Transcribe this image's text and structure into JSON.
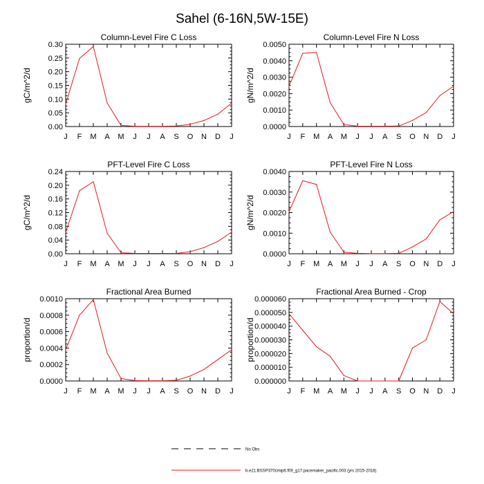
{
  "figure": {
    "title": "Sahel (6-16N,5W-15E)"
  },
  "chart_data": [
    {
      "type": "line",
      "title": "Column-Level Fire C Loss",
      "ylabel": "gC/m^2/d",
      "categories": [
        "J",
        "F",
        "M",
        "A",
        "M",
        "J",
        "J",
        "A",
        "S",
        "O",
        "N",
        "D",
        "J"
      ],
      "ylim": [
        0,
        0.3
      ],
      "yticks": [
        "0.00",
        "0.05",
        "0.10",
        "0.15",
        "0.20",
        "0.25",
        "0.30"
      ],
      "series": [
        {
          "color": "#e8141b",
          "values": [
            0.082,
            0.248,
            0.292,
            0.086,
            0.004,
            0.001,
            0.001,
            0.001,
            0.002,
            0.008,
            0.022,
            0.045,
            0.085
          ]
        }
      ]
    },
    {
      "type": "line",
      "title": "Column-Level Fire N Loss",
      "ylabel": "gN/m^2/d",
      "categories": [
        "J",
        "F",
        "M",
        "A",
        "M",
        "J",
        "J",
        "A",
        "S",
        "O",
        "N",
        "D",
        "J"
      ],
      "ylim": [
        0,
        0.005
      ],
      "yticks": [
        "0.0000",
        "0.0010",
        "0.0020",
        "0.0030",
        "0.0040",
        "0.0050"
      ],
      "series": [
        {
          "color": "#e8141b",
          "values": [
            0.00245,
            0.00445,
            0.0045,
            0.00145,
            0.00012,
            2e-05,
            2e-05,
            2e-05,
            3e-05,
            0.00037,
            0.00085,
            0.00188,
            0.00245
          ]
        }
      ]
    },
    {
      "type": "line",
      "title": "PFT-Level Fire C Loss",
      "ylabel": "gC/m^2/d",
      "categories": [
        "J",
        "F",
        "M",
        "A",
        "M",
        "J",
        "J",
        "A",
        "S",
        "O",
        "N",
        "D",
        "J"
      ],
      "ylim": [
        0,
        0.24
      ],
      "yticks": [
        "0.00",
        "0.04",
        "0.08",
        "0.12",
        "0.16",
        "0.20",
        "0.24"
      ],
      "series": [
        {
          "color": "#e8141b",
          "values": [
            0.062,
            0.184,
            0.21,
            0.06,
            0.003,
            0.001,
            0.001,
            0.001,
            0.001,
            0.006,
            0.018,
            0.036,
            0.063
          ]
        }
      ]
    },
    {
      "type": "line",
      "title": "PFT-Level Fire N Loss",
      "ylabel": "gN/m^2/d",
      "categories": [
        "J",
        "F",
        "M",
        "A",
        "M",
        "J",
        "J",
        "A",
        "S",
        "O",
        "N",
        "D",
        "J"
      ],
      "ylim": [
        0,
        0.004
      ],
      "yticks": [
        "0.0000",
        "0.0010",
        "0.0020",
        "0.0030",
        "0.0040"
      ],
      "series": [
        {
          "color": "#e8141b",
          "values": [
            0.00205,
            0.00355,
            0.00337,
            0.00105,
            8e-05,
            2e-05,
            1e-05,
            1e-05,
            2e-05,
            0.00033,
            0.00072,
            0.00165,
            0.00205
          ]
        }
      ]
    },
    {
      "type": "line",
      "title": "Fractional Area Burned",
      "ylabel": "proportion/d",
      "categories": [
        "J",
        "F",
        "M",
        "A",
        "M",
        "J",
        "J",
        "A",
        "S",
        "O",
        "N",
        "D",
        "J"
      ],
      "ylim": [
        0,
        0.001
      ],
      "yticks": [
        "0.0000",
        "0.0002",
        "0.0004",
        "0.0006",
        "0.0008",
        "0.0010"
      ],
      "series": [
        {
          "color": "#e8141b",
          "values": [
            0.00038,
            0.0008,
            0.00099,
            0.00034,
            3e-05,
            5e-06,
            3e-06,
            3e-06,
            8e-06,
            6e-05,
            0.00014,
            0.00026,
            0.00038
          ]
        }
      ]
    },
    {
      "type": "line",
      "title": "Fractional Area Burned - Crop",
      "ylabel": "proportion/d",
      "categories": [
        "J",
        "F",
        "M",
        "A",
        "M",
        "J",
        "J",
        "A",
        "S",
        "O",
        "N",
        "D",
        "J"
      ],
      "ylim": [
        0,
        6e-05
      ],
      "yticks": [
        "0.000000",
        "0.000010",
        "0.000020",
        "0.000030",
        "0.000040",
        "0.000050",
        "0.000060"
      ],
      "series": [
        {
          "color": "#e8141b",
          "values": [
            4.9e-05,
            3.7e-05,
            2.5e-05,
            1.8e-05,
            4e-06,
            0,
            0,
            0,
            0,
            2.4e-05,
            3e-05,
            5.8e-05,
            4.9e-05
          ]
        }
      ]
    }
  ],
  "legend": {
    "placement": "bottom-center",
    "items": [
      {
        "label": "No Obs",
        "style": "dashed",
        "color": "#000000"
      },
      {
        "label": "b.e21.BSSP370cmip6.f09_g17.pacemaker_pacific.003 (yrs 2015-2018)",
        "style": "solid",
        "color": "#e8141b"
      }
    ]
  }
}
